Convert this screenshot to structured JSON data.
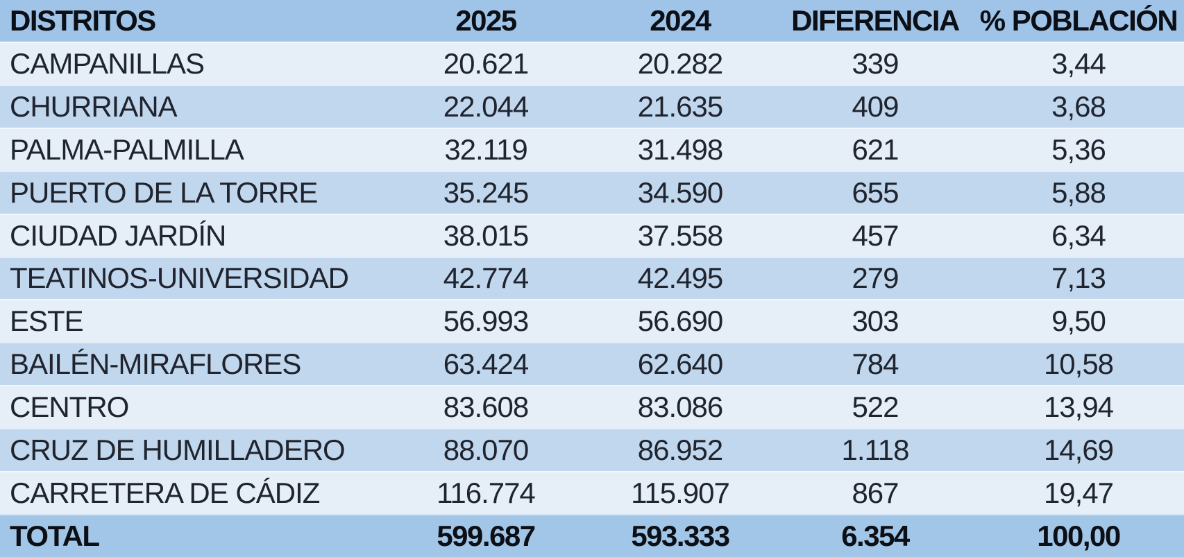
{
  "table": {
    "columns": [
      {
        "key": "district",
        "label": "DISTRITOS"
      },
      {
        "key": "y2025",
        "label": "2025"
      },
      {
        "key": "y2024",
        "label": "2024"
      },
      {
        "key": "diff",
        "label": "DIFERENCIA"
      },
      {
        "key": "pct",
        "label": "% POBLACIÓN"
      }
    ],
    "rows": [
      {
        "district": "CAMPANILLAS",
        "y2025": "20.621",
        "y2024": "20.282",
        "diff": "339",
        "pct": "3,44"
      },
      {
        "district": "CHURRIANA",
        "y2025": "22.044",
        "y2024": "21.635",
        "diff": "409",
        "pct": "3,68"
      },
      {
        "district": "PALMA-PALMILLA",
        "y2025": "32.119",
        "y2024": "31.498",
        "diff": "621",
        "pct": "5,36"
      },
      {
        "district": "PUERTO DE LA TORRE",
        "y2025": "35.245",
        "y2024": "34.590",
        "diff": "655",
        "pct": "5,88"
      },
      {
        "district": "CIUDAD JARDÍN",
        "y2025": "38.015",
        "y2024": "37.558",
        "diff": "457",
        "pct": "6,34"
      },
      {
        "district": "TEATINOS-UNIVERSIDAD",
        "y2025": "42.774",
        "y2024": "42.495",
        "diff": "279",
        "pct": "7,13"
      },
      {
        "district": "ESTE",
        "y2025": "56.993",
        "y2024": "56.690",
        "diff": "303",
        "pct": "9,50"
      },
      {
        "district": "BAILÉN-MIRAFLORES",
        "y2025": "63.424",
        "y2024": "62.640",
        "diff": "784",
        "pct": "10,58"
      },
      {
        "district": "CENTRO",
        "y2025": "83.608",
        "y2024": "83.086",
        "diff": "522",
        "pct": "13,94"
      },
      {
        "district": "CRUZ DE HUMILLADERO",
        "y2025": "88.070",
        "y2024": "86.952",
        "diff": "1.118",
        "pct": "14,69"
      },
      {
        "district": "CARRETERA DE CÁDIZ",
        "y2025": "116.774",
        "y2024": "115.907",
        "diff": "867",
        "pct": "19,47"
      }
    ],
    "total": {
      "district": "TOTAL",
      "y2025": "599.687",
      "y2024": "593.333",
      "diff": "6.354",
      "pct": "100,00"
    }
  },
  "colors": {
    "header_fill": "#9fc4e7",
    "total_fill": "#a2c6e7",
    "row_light": "#e6eef8",
    "row_shade": "#c1d7ee",
    "data_text": "#20242e",
    "header_text": "#0c0f16",
    "row_separator": "rgba(255,255,255,0.55)"
  },
  "chart_data": {
    "type": "table",
    "columns": [
      "DISTRITOS",
      "2025",
      "2024",
      "DIFERENCIA",
      "% POBLACIÓN"
    ],
    "rows": [
      [
        "CAMPANILLAS",
        20621,
        20282,
        339,
        3.44
      ],
      [
        "CHURRIANA",
        22044,
        21635,
        409,
        3.68
      ],
      [
        "PALMA-PALMILLA",
        32119,
        31498,
        621,
        5.36
      ],
      [
        "PUERTO DE LA TORRE",
        35245,
        34590,
        655,
        5.88
      ],
      [
        "CIUDAD JARDÍN",
        38015,
        37558,
        457,
        6.34
      ],
      [
        "TEATINOS-UNIVERSIDAD",
        42774,
        42495,
        279,
        7.13
      ],
      [
        "ESTE",
        56993,
        56690,
        303,
        9.5
      ],
      [
        "BAILÉN-MIRAFLORES",
        63424,
        62640,
        784,
        10.58
      ],
      [
        "CENTRO",
        83608,
        83086,
        522,
        13.94
      ],
      [
        "CRUZ DE HUMILLADERO",
        88070,
        86952,
        1118,
        14.69
      ],
      [
        "CARRETERA DE CÁDIZ",
        116774,
        115907,
        867,
        19.47
      ]
    ],
    "total_row": [
      "TOTAL",
      599687,
      593333,
      6354,
      100.0
    ],
    "number_format": {
      "thousands_separator": ".",
      "decimal_separator": ","
    },
    "layout": {
      "row_shading": "alternating light/shade",
      "header_position": "top",
      "total_position": "bottom"
    }
  }
}
